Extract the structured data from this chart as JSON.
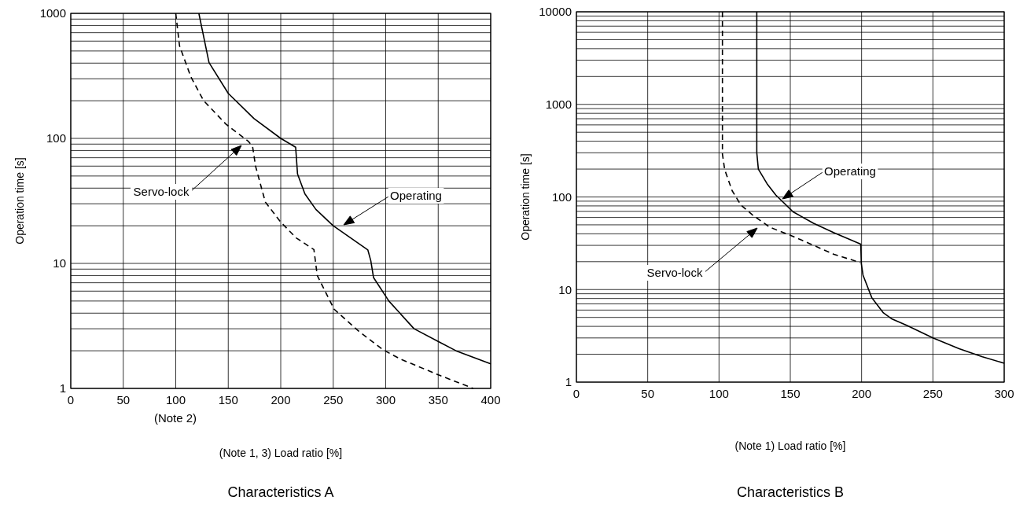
{
  "chart_data": [
    {
      "type": "line",
      "title": "Characteristics A",
      "xlabel": "(Note 1, 3) Load ratio [%]",
      "ylabel": "Operation time [s]",
      "log": "y",
      "grid": true,
      "xlim": [
        0,
        400
      ],
      "xticks": [
        0,
        50,
        100,
        150,
        200,
        250,
        300,
        350,
        400
      ],
      "ylim": [
        1,
        1000
      ],
      "yticks": [
        1,
        {
          "value": 2,
          "label": null
        },
        {
          "value": 3,
          "label": null
        },
        {
          "value": 4,
          "label": null
        },
        {
          "value": 5,
          "label": null
        },
        {
          "value": 6,
          "label": null
        },
        {
          "value": 7,
          "label": null
        },
        {
          "value": 8,
          "label": null
        },
        {
          "value": 9,
          "label": null
        },
        10,
        {
          "value": 20,
          "label": null
        },
        {
          "value": 30,
          "label": null
        },
        {
          "value": 40,
          "label": null
        },
        {
          "value": 50,
          "label": null
        },
        {
          "value": 60,
          "label": null
        },
        {
          "value": 70,
          "label": null
        },
        {
          "value": 80,
          "label": null
        },
        {
          "value": 90,
          "label": null
        },
        100,
        {
          "value": 200,
          "label": null
        },
        {
          "value": 300,
          "label": null
        },
        {
          "value": 400,
          "label": null
        },
        {
          "value": 500,
          "label": null
        },
        {
          "value": 600,
          "label": null
        },
        {
          "value": 700,
          "label": null
        },
        {
          "value": 800,
          "label": null
        },
        {
          "value": 900,
          "label": null
        },
        1000
      ],
      "series": [
        {
          "color": "#000000",
          "line_style": "solid",
          "x": [
            122,
            131.7,
            150,
            174.6,
            200,
            214.2,
            216,
            223,
            233.5,
            250,
            283,
            285.8,
            288.4,
            303,
            327,
            351,
            367,
            400
          ],
          "values": [
            1000,
            404,
            229,
            144,
            100,
            85,
            52,
            36,
            27,
            20,
            12.8,
            10.5,
            7.7,
            5,
            3,
            2.35,
            2,
            1.57
          ]
        },
        {
          "color": "#000000",
          "line_style": "dashed",
          "x": [
            100,
            103.6,
            114.3,
            126.4,
            147.8,
            169,
            173.2,
            176,
            185.3,
            200,
            214.7,
            231.6,
            234.8,
            250.9,
            273.6,
            297.7,
            313.8,
            352.6,
            383.4
          ],
          "values": [
            1000,
            550,
            312,
            201,
            130,
            95,
            86,
            60,
            31,
            21.4,
            16,
            12.9,
            8,
            4.3,
            2.9,
            2.03,
            1.72,
            1.26,
            1
          ]
        }
      ],
      "annotations": [
        "Servo-lock",
        "Operating",
        "(Note 2)"
      ]
    },
    {
      "type": "line",
      "title": "Characteristics B",
      "xlabel": "(Note 1) Load ratio [%]",
      "ylabel": "Operation time [s]",
      "log": "y",
      "grid": true,
      "xlim": [
        0,
        300
      ],
      "xticks": [
        0,
        50,
        100,
        150,
        200,
        250,
        300
      ],
      "ylim": [
        1,
        10000
      ],
      "yticks": [
        1,
        {
          "value": 2,
          "label": null
        },
        {
          "value": 3,
          "label": null
        },
        {
          "value": 4,
          "label": null
        },
        {
          "value": 5,
          "label": null
        },
        {
          "value": 6,
          "label": null
        },
        {
          "value": 7,
          "label": null
        },
        {
          "value": 8,
          "label": null
        },
        {
          "value": 9,
          "label": null
        },
        10,
        {
          "value": 20,
          "label": null
        },
        {
          "value": 30,
          "label": null
        },
        {
          "value": 40,
          "label": null
        },
        {
          "value": 50,
          "label": null
        },
        {
          "value": 60,
          "label": null
        },
        {
          "value": 70,
          "label": null
        },
        {
          "value": 80,
          "label": null
        },
        {
          "value": 90,
          "label": null
        },
        100,
        {
          "value": 200,
          "label": null
        },
        {
          "value": 300,
          "label": null
        },
        {
          "value": 400,
          "label": null
        },
        {
          "value": 500,
          "label": null
        },
        {
          "value": 600,
          "label": null
        },
        {
          "value": 700,
          "label": null
        },
        {
          "value": 800,
          "label": null
        },
        {
          "value": 900,
          "label": null
        },
        1000,
        {
          "value": 2000,
          "label": null
        },
        {
          "value": 3000,
          "label": null
        },
        {
          "value": 4000,
          "label": null
        },
        {
          "value": 5000,
          "label": null
        },
        {
          "value": 6000,
          "label": null
        },
        {
          "value": 7000,
          "label": null
        },
        {
          "value": 8000,
          "label": null
        },
        {
          "value": 9000,
          "label": null
        },
        10000
      ],
      "series": [
        {
          "color": "#000000",
          "line_style": "solid",
          "x": [
            126.5,
            126.5,
            127.6,
            133.7,
            139.8,
            152,
            166.3,
            180.6,
            199.4,
            199.8,
            201,
            207.1,
            215.3,
            221.4,
            231.6,
            250,
            268.4,
            284.7,
            300
          ],
          "values": [
            10000,
            300,
            200,
            139,
            105,
            69,
            52,
            41,
            31,
            19,
            14.3,
            8.2,
            5.6,
            4.8,
            4.1,
            3,
            2.3,
            1.88,
            1.6
          ]
        },
        {
          "color": "#000000",
          "line_style": "dashed",
          "x": [
            102.4,
            102.4,
            104,
            109.2,
            115.3,
            123.5,
            135.7,
            150,
            164.3,
            180.6,
            199
          ],
          "values": [
            10000,
            290,
            197,
            117,
            82,
            64,
            47,
            38.6,
            31,
            24,
            19.6
          ]
        }
      ],
      "annotations": [
        "Operating",
        "Servo-lock"
      ]
    }
  ]
}
